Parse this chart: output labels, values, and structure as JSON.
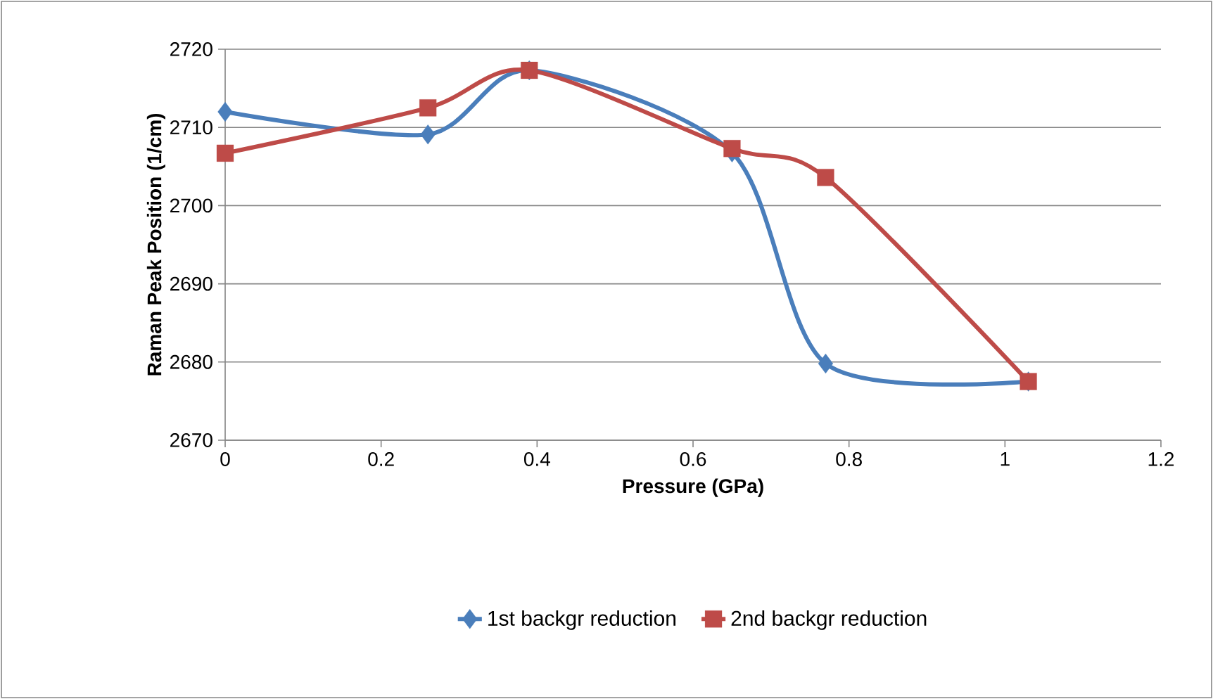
{
  "chart_data": {
    "type": "line",
    "xlabel": "Pressure (GPa)",
    "ylabel": "Raman Peak Position (1/cm)",
    "series": [
      {
        "name": "1st backgr reduction",
        "color": "#4a7ebb",
        "marker": "diamond",
        "x": [
          0,
          0.26,
          0.39,
          0.65,
          0.77,
          1.03
        ],
        "values": [
          2712,
          2709.1,
          2717.3,
          2706.8,
          2679.8,
          2677.5
        ]
      },
      {
        "name": "2nd backgr reduction",
        "color": "#be4b48",
        "marker": "square",
        "x": [
          0,
          0.26,
          0.39,
          0.65,
          0.77,
          1.03
        ],
        "values": [
          2706.7,
          2712.5,
          2717.3,
          2707.3,
          2703.6,
          2677.5
        ]
      }
    ],
    "xlim": [
      0,
      1.2
    ],
    "xticks": [
      0,
      0.2,
      0.4,
      0.6,
      0.8,
      1,
      1.2
    ],
    "ylim": [
      2670,
      2720
    ],
    "yticks": [
      2670,
      2680,
      2690,
      2700,
      2710,
      2720
    ],
    "grid": "y",
    "legend": "bottom",
    "line_style": "solid"
  }
}
